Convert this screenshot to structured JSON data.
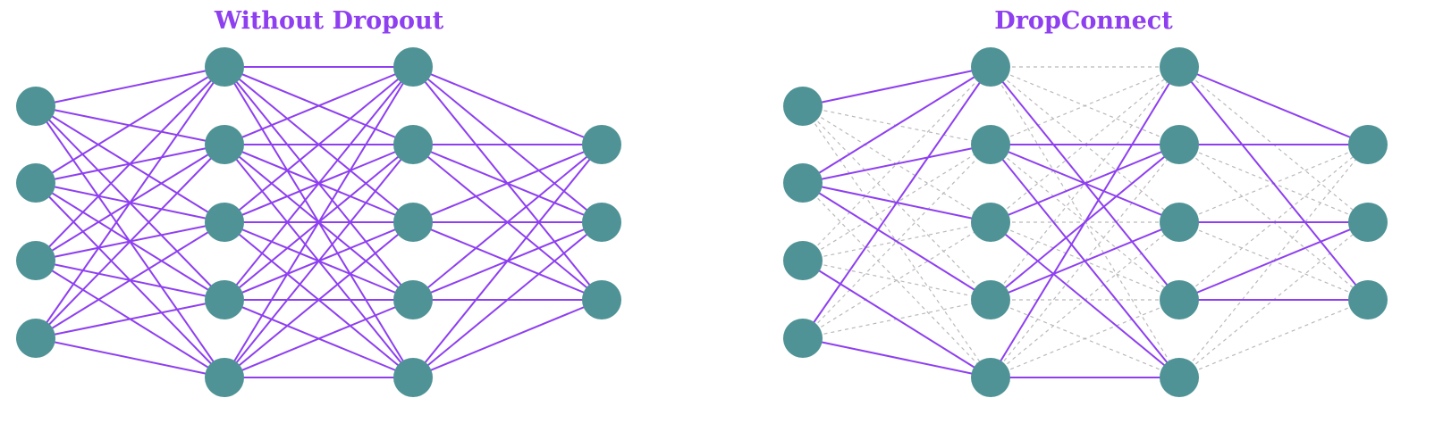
{
  "colors": {
    "node": "#4f9396",
    "active_edge": "#8e3ff0",
    "dropped_edge": "#b9b9b9",
    "title": "#8e3ff0"
  },
  "layers": [
    4,
    5,
    5,
    3
  ],
  "panels": [
    {
      "id": "without-dropout",
      "title": "Without Dropout",
      "edges": [
        {
          "from_layer": 0,
          "to_layer": 1,
          "mode": "all"
        },
        {
          "from_layer": 1,
          "to_layer": 2,
          "mode": "all"
        },
        {
          "from_layer": 2,
          "to_layer": 3,
          "mode": "all"
        }
      ]
    },
    {
      "id": "dropconnect",
      "title": "DropConnect",
      "edges": [
        {
          "from_layer": 0,
          "to_layer": 1,
          "mode": "partial",
          "active": [
            [
              0,
              0
            ],
            [
              1,
              0
            ],
            [
              1,
              1
            ],
            [
              1,
              2
            ],
            [
              1,
              3
            ],
            [
              2,
              4
            ],
            [
              3,
              0
            ],
            [
              3,
              4
            ]
          ]
        },
        {
          "from_layer": 1,
          "to_layer": 2,
          "mode": "partial",
          "active": [
            [
              0,
              3
            ],
            [
              1,
              1
            ],
            [
              1,
              2
            ],
            [
              1,
              4
            ],
            [
              2,
              1
            ],
            [
              2,
              4
            ],
            [
              3,
              1
            ],
            [
              3,
              2
            ],
            [
              4,
              0
            ],
            [
              4,
              4
            ]
          ]
        },
        {
          "from_layer": 2,
          "to_layer": 3,
          "mode": "partial",
          "active": [
            [
              0,
              0
            ],
            [
              0,
              2
            ],
            [
              1,
              0
            ],
            [
              2,
              1
            ],
            [
              3,
              1
            ],
            [
              3,
              2
            ]
          ]
        }
      ]
    }
  ]
}
